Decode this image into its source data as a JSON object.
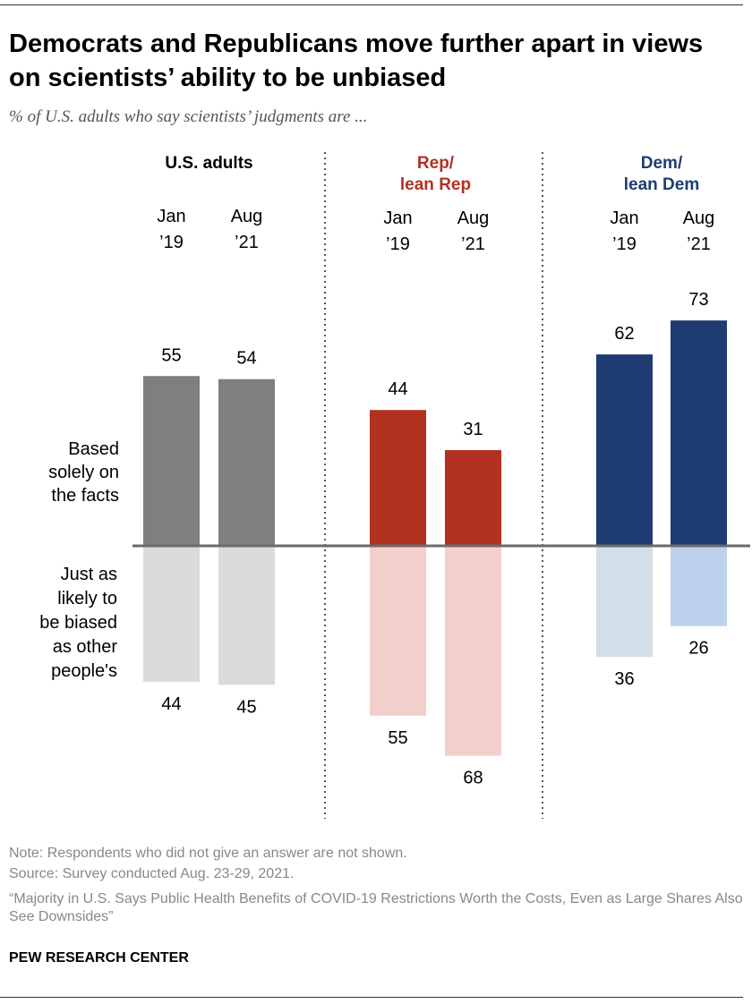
{
  "title": "Democrats and Republicans move further apart in views on scientists’ ability to be unbiased",
  "subtitle": "% of U.S. adults who say scientists’ judgments are ...",
  "chart_data": {
    "type": "bar",
    "title": "Democrats and Republicans move further apart in views on scientists’ ability to be unbiased",
    "subtitle": "% of U.S. adults who say scientists’ judgments are ...",
    "groups": [
      {
        "name": "U.S. adults",
        "label_lines": [
          "U.S. adults"
        ],
        "color_upper": "#7f7f7f",
        "color_lower": "#dadada",
        "header_color": "#000000",
        "periods": [
          {
            "label_lines": [
              "Jan",
              "’19"
            ],
            "facts": 55,
            "biased": 44
          },
          {
            "label_lines": [
              "Aug",
              "’21"
            ],
            "facts": 54,
            "biased": 45
          }
        ]
      },
      {
        "name": "Rep/ lean Rep",
        "label_lines": [
          "Rep/",
          "lean Rep"
        ],
        "color_upper": "#b23121",
        "color_lower": "#f3cfcb",
        "header_color": "#b23121",
        "periods": [
          {
            "label_lines": [
              "Jan",
              "’19"
            ],
            "facts": 44,
            "biased": 55
          },
          {
            "label_lines": [
              "Aug",
              "’21"
            ],
            "facts": 31,
            "biased": 68
          }
        ]
      },
      {
        "name": "Dem/ lean Dem",
        "label_lines": [
          "Dem/",
          "lean Dem"
        ],
        "color_upper": "#1e3c72",
        "color_lower_jan": "#d2dee8",
        "color_lower": "#bcd1ec",
        "header_color": "#1e3c72",
        "periods": [
          {
            "label_lines": [
              "Jan",
              "’19"
            ],
            "facts": 62,
            "biased": 36
          },
          {
            "label_lines": [
              "Aug",
              "’21"
            ],
            "facts": 73,
            "biased": 26
          }
        ]
      }
    ],
    "series": [
      {
        "name": "Based solely on the facts",
        "label_lines": [
          "Based",
          "solely on",
          "the facts"
        ]
      },
      {
        "name": "Just as likely to be biased as other people's",
        "label_lines": [
          "Just as",
          "likely to",
          "be biased",
          "as other",
          "people's"
        ]
      }
    ],
    "ylim": [
      -70,
      75
    ],
    "grid": false,
    "legend": "left"
  },
  "notes": {
    "note": "Note: Respondents who did not give an answer are not shown.",
    "source": "Source: Survey conducted Aug. 23-29, 2021.",
    "report": "“Majority in U.S. Says Public Health Benefits of COVID-19 Restrictions Worth the Costs, Even as Large Shares Also See Downsides”"
  },
  "brand": "PEW RESEARCH CENTER"
}
